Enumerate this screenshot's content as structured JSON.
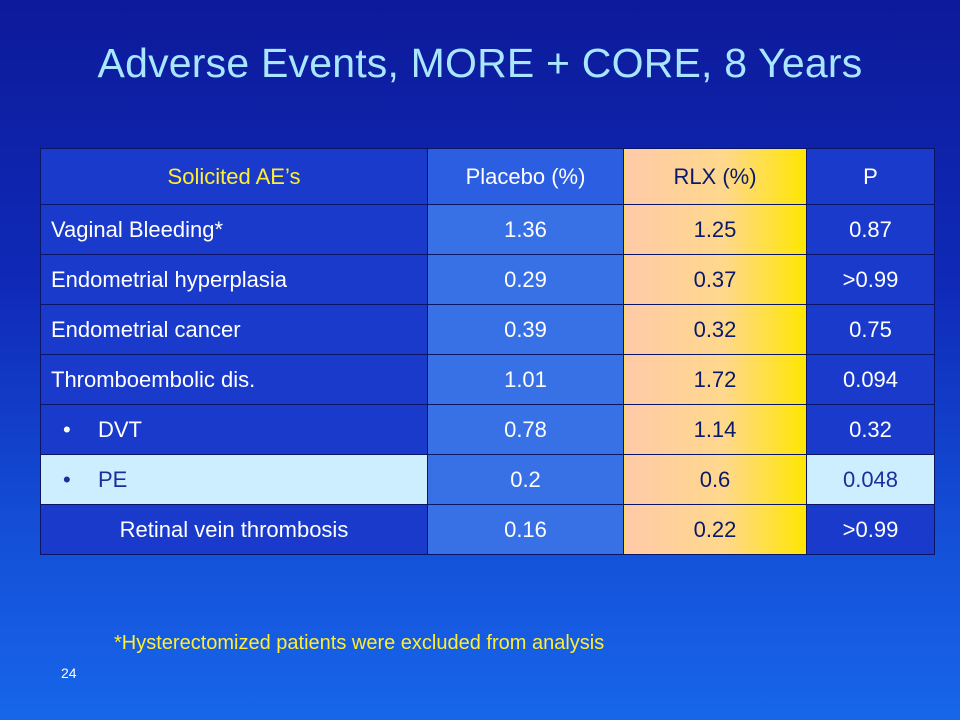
{
  "title": "Adverse Events, MORE + CORE, 8 Years",
  "table": {
    "headers": [
      "Solicited AE’s",
      "Placebo (%)",
      "RLX (%)",
      "P"
    ],
    "rows": [
      {
        "label": "Vaginal Bleeding*",
        "bullet": "",
        "placebo": "1.36",
        "rlx": "1.25",
        "p": "0.87"
      },
      {
        "label": "Endometrial hyperplasia",
        "bullet": "",
        "placebo": "0.29",
        "rlx": "0.37",
        "p": ">0.99"
      },
      {
        "label": "Endometrial cancer",
        "bullet": "",
        "placebo": "0.39",
        "rlx": "0.32",
        "p": "0.75"
      },
      {
        "label": "Thromboembolic dis.",
        "bullet": "",
        "placebo": "1.01",
        "rlx": "1.72",
        "p": "0.094"
      },
      {
        "label": "DVT",
        "bullet": "•",
        "placebo": "0.78",
        "rlx": "1.14",
        "p": "0.32"
      },
      {
        "label": "PE",
        "bullet": "•",
        "placebo": "0.2",
        "rlx": "0.6",
        "p": "0.048"
      },
      {
        "label": "Retinal vein thrombosis",
        "bullet": "",
        "placebo": "0.16",
        "rlx": "0.22",
        "p": ">0.99"
      }
    ]
  },
  "footnote": "*Hysterectomized patients were excluded from analysis",
  "page_number": "24",
  "colors": {
    "title": "#a9e6ff",
    "header_label": "#ffee33",
    "highlight_row": "#cdeeff",
    "rlx_gradient_end": "#ffe600"
  }
}
